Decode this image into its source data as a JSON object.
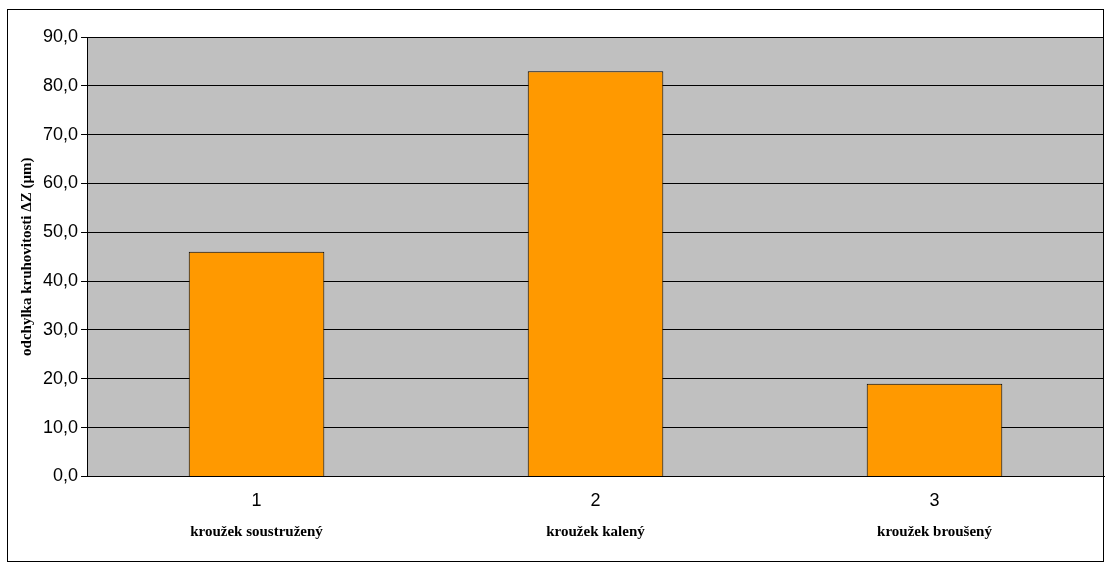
{
  "chart_data": {
    "type": "bar",
    "ylabel": "odchylka kruhovitosti ΔZ (µm)",
    "categories": [
      "1",
      "2",
      "3"
    ],
    "values": [
      46,
      83,
      19
    ],
    "color": "#ff9900",
    "ylim": [
      0,
      90
    ],
    "yticks": [
      {
        "value": 0,
        "label": "0,0"
      },
      {
        "value": 10,
        "label": "10,0"
      },
      {
        "value": 20,
        "label": "20,0"
      },
      {
        "value": 30,
        "label": "30,0"
      },
      {
        "value": 40,
        "label": "40,0"
      },
      {
        "value": 50,
        "label": "50,0"
      },
      {
        "value": 60,
        "label": "60,0"
      },
      {
        "value": 70,
        "label": "70,0"
      },
      {
        "value": 80,
        "label": "80,0"
      },
      {
        "value": 90,
        "label": "90,0"
      }
    ],
    "grid": "y",
    "legend": false,
    "annotations": [
      "kroužek soustružený",
      "kroužek kalený",
      "kroužek broušený"
    ]
  }
}
